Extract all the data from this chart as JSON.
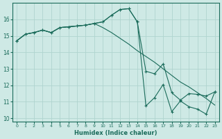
{
  "xlabel": "Humidex (Indice chaleur)",
  "xlim": [
    -0.5,
    23.5
  ],
  "ylim": [
    9.8,
    17.0
  ],
  "yticks": [
    10,
    11,
    12,
    13,
    14,
    15,
    16
  ],
  "xticks": [
    0,
    1,
    2,
    3,
    4,
    5,
    6,
    7,
    8,
    9,
    10,
    11,
    12,
    13,
    14,
    15,
    16,
    17,
    18,
    19,
    20,
    21,
    22,
    23
  ],
  "background_color": "#cee9e5",
  "grid_color": "#afd4cf",
  "line_color": "#1a6b5a",
  "line1_y": [
    14.7,
    15.1,
    15.2,
    15.35,
    15.2,
    15.5,
    15.55,
    15.6,
    15.65,
    15.75,
    15.85,
    16.25,
    16.6,
    16.65,
    15.85,
    12.85,
    12.7,
    13.3,
    11.55,
    11.1,
    11.5,
    11.45,
    11.35,
    11.6
  ],
  "line2_y": [
    14.7,
    15.1,
    15.2,
    15.35,
    15.2,
    15.5,
    15.55,
    15.6,
    15.65,
    15.75,
    15.85,
    16.25,
    16.6,
    16.65,
    15.85,
    10.75,
    11.25,
    12.05,
    10.4,
    11.05,
    10.7,
    10.55,
    10.25,
    11.6
  ],
  "line3_y": [
    14.7,
    15.1,
    15.2,
    15.35,
    15.2,
    15.5,
    15.55,
    15.6,
    15.65,
    15.75,
    15.5,
    15.2,
    14.85,
    14.5,
    14.1,
    13.75,
    13.4,
    13.0,
    12.6,
    12.2,
    11.9,
    11.55,
    11.2,
    10.8
  ]
}
